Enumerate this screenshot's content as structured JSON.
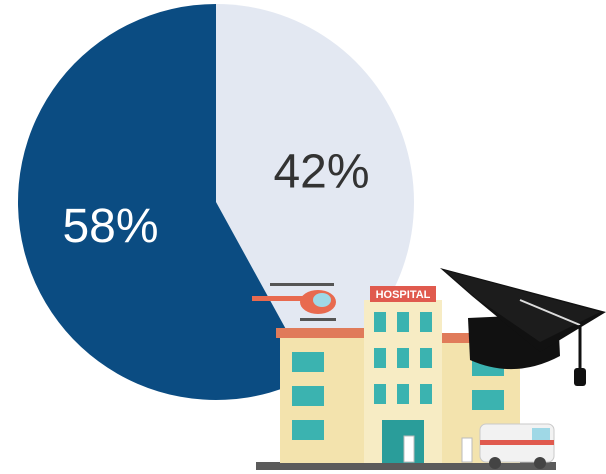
{
  "chart_data": {
    "type": "pie",
    "values": [
      42,
      58
    ],
    "value_labels": [
      "42%",
      "58%"
    ],
    "colors": [
      "#e3e8f2",
      "#0b4c82"
    ]
  },
  "illustration": {
    "sign": "HOSPITAL"
  }
}
